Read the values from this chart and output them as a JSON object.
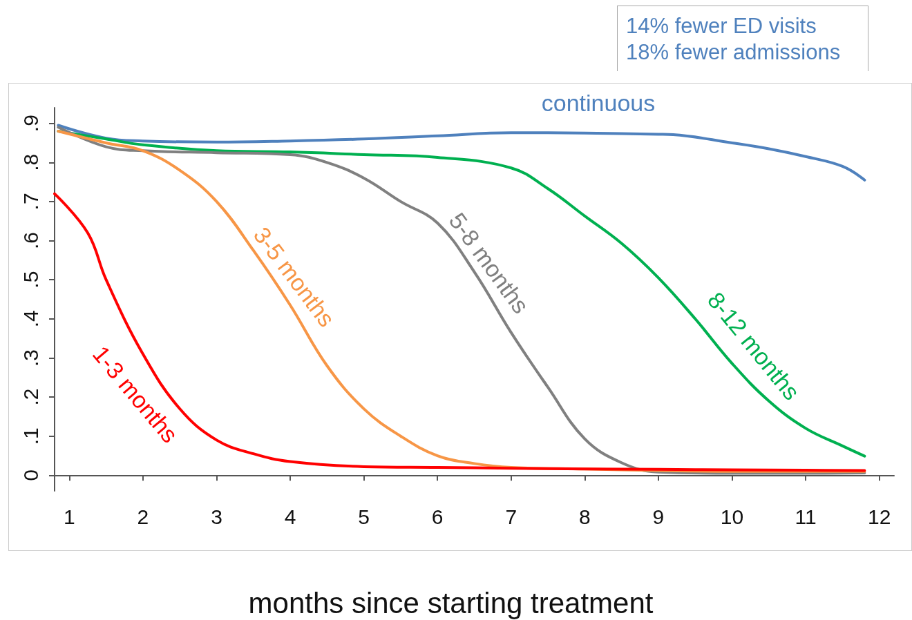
{
  "chart_data": {
    "type": "line",
    "xlabel": "months since starting treatment",
    "annotations": [
      "14% fewer ED visits",
      "18% fewer admissions"
    ],
    "xlim": [
      0.8,
      12.2
    ],
    "xticks": [
      1,
      2,
      3,
      4,
      5,
      6,
      7,
      8,
      9,
      10,
      11,
      12
    ],
    "ylim": [
      -0.04,
      0.94
    ],
    "yticks": [
      0,
      {
        "value": 0.1,
        "label": ".1"
      },
      {
        "value": 0.2,
        "label": ".2"
      },
      {
        "value": 0.3,
        "label": ".3"
      },
      {
        "value": 0.4,
        "label": ".4"
      },
      {
        "value": 0.5,
        "label": ".5"
      },
      {
        "value": 0.6,
        "label": ".6"
      },
      {
        "value": 0.7,
        "label": ".7"
      },
      {
        "value": 0.8,
        "label": ".8"
      },
      {
        "value": 0.9,
        "label": ".9"
      }
    ],
    "grid": false,
    "legend": false,
    "marker": "none",
    "line_style": "solid",
    "series": [
      {
        "name": "continuous",
        "color": "#4f81bd",
        "x": [
          0.85,
          1.5,
          2,
          3,
          4,
          5,
          6,
          7,
          8,
          9,
          9.2,
          10,
          10.5,
          11,
          11.5,
          11.8
        ],
        "values": [
          0.895,
          0.862,
          0.855,
          0.852,
          0.855,
          0.86,
          0.868,
          0.876,
          0.875,
          0.872,
          0.871,
          0.85,
          0.835,
          0.815,
          0.79,
          0.755
        ]
      },
      {
        "name": "8-12 months",
        "color": "#00b050",
        "x": [
          0.85,
          1.5,
          2,
          3,
          4,
          5,
          6,
          7,
          7.5,
          8,
          8.5,
          9,
          9.5,
          10,
          10.5,
          11,
          11.5,
          11.8
        ],
        "values": [
          0.88,
          0.86,
          0.845,
          0.83,
          0.827,
          0.82,
          0.813,
          0.786,
          0.733,
          0.663,
          0.593,
          0.505,
          0.4,
          0.286,
          0.19,
          0.12,
          0.075,
          0.049
        ]
      },
      {
        "name": "5-8 months",
        "color": "#808080",
        "x": [
          0.85,
          1.5,
          2,
          3,
          4,
          4.5,
          5,
          5.5,
          6,
          6.5,
          7,
          7.5,
          8,
          8.5,
          9,
          10,
          11,
          11.8
        ],
        "values": [
          0.89,
          0.84,
          0.83,
          0.825,
          0.82,
          0.8,
          0.76,
          0.7,
          0.645,
          0.52,
          0.365,
          0.225,
          0.093,
          0.032,
          0.008,
          0.005,
          0.005,
          0.006
        ]
      },
      {
        "name": "3-5 months",
        "color": "#f79646",
        "x": [
          0.85,
          1.5,
          2,
          2.5,
          3,
          3.5,
          4,
          4.5,
          5,
          5.5,
          6,
          6.5,
          7,
          8,
          9,
          10,
          11,
          11.8
        ],
        "values": [
          0.88,
          0.85,
          0.83,
          0.78,
          0.7,
          0.575,
          0.435,
          0.28,
          0.17,
          0.1,
          0.05,
          0.03,
          0.02,
          0.016,
          0.012,
          0.01,
          0.01,
          0.01
        ]
      },
      {
        "name": "1-3 months",
        "color": "#ff0000",
        "x": [
          0.8,
          1.25,
          1.5,
          2,
          2.5,
          3,
          3.5,
          4,
          5,
          6,
          7,
          8,
          9,
          10,
          11,
          11.8
        ],
        "values": [
          0.72,
          0.62,
          0.5,
          0.31,
          0.17,
          0.09,
          0.055,
          0.035,
          0.022,
          0.02,
          0.018,
          0.016,
          0.015,
          0.014,
          0.013,
          0.012
        ]
      }
    ]
  }
}
